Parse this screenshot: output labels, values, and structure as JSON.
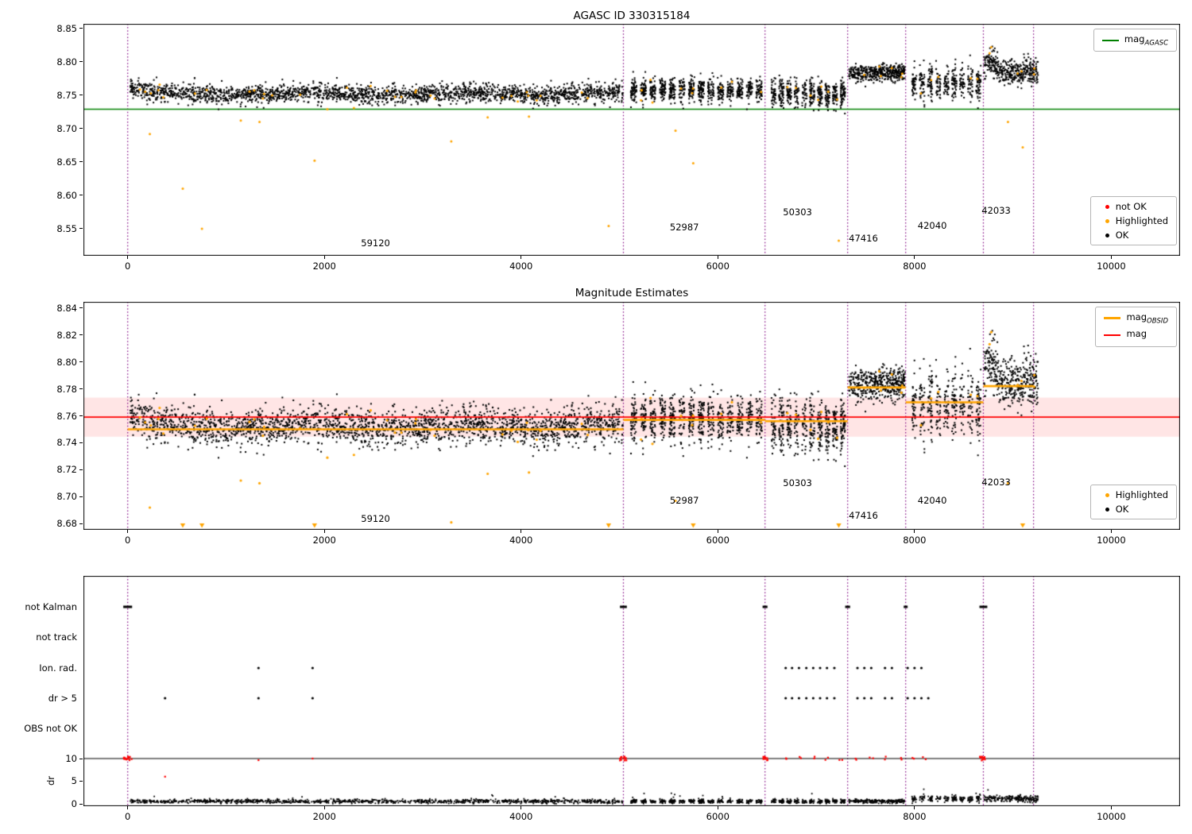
{
  "chart_data": [
    {
      "name": "agasc-mag-scatter",
      "type": "scatter",
      "title": "AGASC ID 330315184",
      "xlim": [
        -450,
        10700
      ],
      "ylim": [
        8.5095,
        8.857
      ],
      "xticks": [
        0,
        2000,
        4000,
        6000,
        8000,
        10000
      ],
      "yticks": [
        8.55,
        8.6,
        8.65,
        8.7,
        8.75,
        8.8,
        8.85
      ],
      "agasc_mag_line": 8.729,
      "agasc_line_color": "#008000",
      "obsid_boundaries": [
        0,
        5040,
        6480,
        7320,
        7910,
        8700,
        9210
      ],
      "legend_line": {
        "main": "mag",
        "sub": "AGASC"
      },
      "legend_markers": [
        {
          "label": "not OK",
          "color": "#ff0000"
        },
        {
          "label": "Highlighted",
          "color": "#ffa500"
        },
        {
          "label": "OK",
          "color": "#000000"
        }
      ],
      "obsid_labels": [
        {
          "id": "59120",
          "x": 2520,
          "y": 8.528
        },
        {
          "id": "52987",
          "x": 5660,
          "y": 8.552
        },
        {
          "id": "50303",
          "x": 6810,
          "y": 8.575
        },
        {
          "id": "47416",
          "x": 7480,
          "y": 8.536
        },
        {
          "id": "42040",
          "x": 8180,
          "y": 8.555
        },
        {
          "id": "42033",
          "x": 8830,
          "y": 8.577
        }
      ]
    },
    {
      "name": "magnitude-estimates-zoom",
      "type": "scatter",
      "title": "Magnitude Estimates",
      "xlim": [
        -450,
        10700
      ],
      "ylim": [
        8.6755,
        8.8445
      ],
      "xticks": [
        0,
        2000,
        4000,
        6000,
        8000,
        10000
      ],
      "yticks": [
        8.68,
        8.7,
        8.72,
        8.74,
        8.76,
        8.78,
        8.8,
        8.82,
        8.84
      ],
      "mag_line": 8.759,
      "mag_line_color": "#ff0000",
      "mag_band": [
        8.7445,
        8.7735
      ],
      "band_fill": "rgba(255,0,0,0.10)",
      "obsid_line_color": "#ffa500",
      "obsid_mag_segments": [
        {
          "obsid": "59120",
          "x0": 0,
          "x1": 5040,
          "mag": 8.75
        },
        {
          "obsid": "52987",
          "x0": 5040,
          "x1": 6480,
          "mag": 8.757
        },
        {
          "obsid": "50303",
          "x0": 6480,
          "x1": 7320,
          "mag": 8.756
        },
        {
          "obsid": "47416",
          "x0": 7320,
          "x1": 7910,
          "mag": 8.781
        },
        {
          "obsid": "42040",
          "x0": 7910,
          "x1": 8700,
          "mag": 8.77
        },
        {
          "obsid": "42033",
          "x0": 8700,
          "x1": 9210,
          "mag": 8.782
        }
      ],
      "legend_lines": [
        {
          "main": "mag",
          "sub": "OBSID",
          "color": "#ffa500"
        },
        {
          "main": "mag",
          "sub": "",
          "color": "#ff0000"
        }
      ],
      "legend_markers": [
        {
          "label": "Highlighted",
          "color": "#ffa500"
        },
        {
          "label": "OK",
          "color": "#000000"
        }
      ],
      "obsid_labels": [
        {
          "id": "59120",
          "x": 2520,
          "y": 8.684
        },
        {
          "id": "52987",
          "x": 5660,
          "y": 8.697
        },
        {
          "id": "50303",
          "x": 6810,
          "y": 8.71
        },
        {
          "id": "47416",
          "x": 7480,
          "y": 8.686
        },
        {
          "id": "42040",
          "x": 8180,
          "y": 8.697
        },
        {
          "id": "42033",
          "x": 8830,
          "y": 8.711
        }
      ]
    },
    {
      "name": "flags-and-dr",
      "type": "scatter",
      "row_labels": [
        "not Kalman",
        "not track",
        "Ion. rad.",
        "dr > 5",
        "OBS not OK"
      ],
      "dr_axis_label": "dr",
      "dr_ticks": [
        10,
        5,
        0
      ],
      "dr_limit_line": 10,
      "dr_fail_color": "#ff0000",
      "xticks": [
        0,
        2000,
        4000,
        6000,
        8000,
        10000
      ],
      "not_kalman_marks": [
        {
          "x": 0,
          "w": 90
        },
        {
          "x": 5040,
          "w": 70
        },
        {
          "x": 6480,
          "w": 50
        },
        {
          "x": 7320,
          "w": 50
        },
        {
          "x": 7910,
          "w": 40
        },
        {
          "x": 8700,
          "w": 80
        }
      ],
      "ion_rad_x": [
        1330,
        1880,
        6690,
        6755,
        6825,
        6900,
        6970,
        7040,
        7110,
        7185,
        7420,
        7490,
        7560,
        7700,
        7770,
        7930,
        8000,
        8070
      ],
      "dr_gt5_x": [
        380,
        1330,
        1880,
        6690,
        6755,
        6825,
        6900,
        6970,
        7040,
        7110,
        7185,
        7420,
        7490,
        7560,
        7700,
        7770,
        7930,
        8000,
        8070,
        8140
      ],
      "dr10_red": [
        {
          "x": 0,
          "n": 14,
          "spread": 90
        },
        {
          "x": 1330,
          "n": 1,
          "spread": 0
        },
        {
          "x": 1880,
          "n": 1,
          "spread": 0
        },
        {
          "x": 5040,
          "n": 12,
          "spread": 70
        },
        {
          "x": 6480,
          "n": 10,
          "spread": 60
        },
        {
          "x": 6700,
          "n": 2,
          "spread": 40
        },
        {
          "x": 6830,
          "n": 2,
          "spread": 40
        },
        {
          "x": 6970,
          "n": 2,
          "spread": 40
        },
        {
          "x": 7110,
          "n": 2,
          "spread": 40
        },
        {
          "x": 7250,
          "n": 2,
          "spread": 40
        },
        {
          "x": 7420,
          "n": 2,
          "spread": 40
        },
        {
          "x": 7560,
          "n": 2,
          "spread": 40
        },
        {
          "x": 7700,
          "n": 2,
          "spread": 40
        },
        {
          "x": 7850,
          "n": 2,
          "spread": 40
        },
        {
          "x": 7980,
          "n": 2,
          "spread": 40
        },
        {
          "x": 8100,
          "n": 2,
          "spread": 40
        },
        {
          "x": 8700,
          "n": 12,
          "spread": 70
        }
      ],
      "dr_red_extra": [
        {
          "x": 380,
          "dr": 6.0
        }
      ],
      "dr_model": {
        "base_low": 0.55,
        "base_high": 1.15,
        "sigma_low": 0.22,
        "sigma_high": 0.38,
        "high_from_x": 7955
      }
    }
  ],
  "scatter_model": {
    "vlines": [
      0,
      5040,
      6480,
      7320,
      7910,
      8700,
      9210
    ],
    "vline_color": "#800080",
    "highlight_color": "#ffa500",
    "ok_color": "#000000",
    "highlight_every": 74,
    "segments": [
      {
        "obsid": "59120",
        "x0": 25,
        "x1": 5035,
        "n": 2250,
        "mean": 8.7525,
        "sigma": 0.0068,
        "clusters": 0,
        "wobble_period": 1500,
        "wobble_amp": 0.002,
        "head_until": 200,
        "head_amp": 0.009
      },
      {
        "obsid": "52987",
        "x0": 5095,
        "x1": 6470,
        "n": 800,
        "mean": 8.757,
        "sigma": 0.0085,
        "clusters": 14
      },
      {
        "obsid": "50303",
        "x0": 6530,
        "x1": 7310,
        "n": 520,
        "mean": 8.752,
        "sigma": 0.0105,
        "clusters": 10
      },
      {
        "obsid": "47416",
        "x0": 7335,
        "x1": 7905,
        "n": 430,
        "mean": 8.7835,
        "sigma": 0.0062,
        "clusters": 0
      },
      {
        "obsid": "42040",
        "x0": 7955,
        "x1": 8690,
        "n": 400,
        "mean": 8.7685,
        "sigma": 0.0125,
        "clusters": 9
      },
      {
        "obsid": "42033",
        "x0": 8705,
        "x1": 9260,
        "n": 400,
        "mean": 8.7835,
        "sigma": 0.0095,
        "clusters": 0,
        "bump_x": 8770,
        "bump_w": 70,
        "bump_amp": 0.018
      }
    ],
    "highlight_outliers": [
      [
        225,
        8.692
      ],
      [
        560,
        8.61
      ],
      [
        755,
        8.55
      ],
      [
        1150,
        8.712
      ],
      [
        1340,
        8.71
      ],
      [
        1900,
        8.652
      ],
      [
        2030,
        8.729
      ],
      [
        2300,
        8.731
      ],
      [
        2470,
        8.764
      ],
      [
        3290,
        8.681
      ],
      [
        3660,
        8.717
      ],
      [
        4080,
        8.718
      ],
      [
        4890,
        8.554
      ],
      [
        5570,
        8.697
      ],
      [
        5750,
        8.648
      ],
      [
        7230,
        8.532
      ],
      [
        8780,
        8.822
      ],
      [
        8950,
        8.71
      ],
      [
        9100,
        8.672
      ]
    ]
  }
}
